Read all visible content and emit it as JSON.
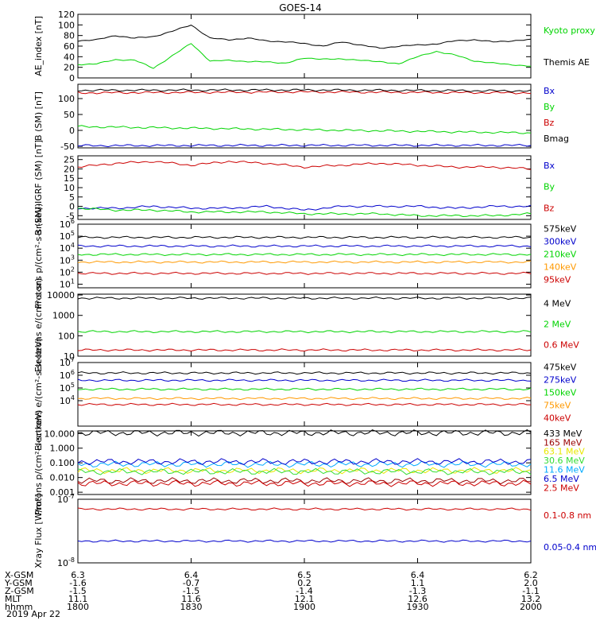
{
  "title": "GOES-14",
  "date": "2019 Apr 22",
  "colors": {
    "black": "#000000",
    "green": "#00d400",
    "red": "#cc0000",
    "blue": "#0000cc",
    "orange": "#ff9900",
    "cyan": "#00aaff",
    "yellow": "#e8e800",
    "darkred": "#990000",
    "purple": "#9900cc",
    "lightgreen": "#33dd33"
  },
  "chart_data": [
    {
      "type": "line",
      "ylabel": "AE_index [nT]",
      "ylim": [
        0,
        120
      ],
      "ticks": [
        {
          "v": 0,
          "t": "0"
        },
        {
          "v": 20,
          "t": "20"
        },
        {
          "v": 40,
          "t": "40"
        },
        {
          "v": 60,
          "t": "60"
        },
        {
          "v": 80,
          "t": "80"
        },
        {
          "v": 100,
          "t": "100"
        },
        {
          "v": 120,
          "t": "120"
        }
      ],
      "series": [
        {
          "name": "Kyoto proxy AE",
          "color": "#00d400",
          "x": [
            1800,
            1805,
            1810,
            1815,
            1820,
            1825,
            1830,
            1835,
            1840,
            1845,
            1850,
            1855,
            1900,
            1905,
            1910,
            1915,
            1920,
            1925,
            1930,
            1935,
            1940,
            1945,
            1950,
            1955,
            2000
          ],
          "y": [
            25,
            27,
            34,
            34,
            18,
            42,
            65,
            32,
            33,
            31,
            30,
            28,
            37,
            36,
            35,
            34,
            30,
            27,
            40,
            50,
            43,
            32,
            28,
            25,
            22
          ]
        },
        {
          "name": "Themis AE",
          "color": "#000000",
          "x": [
            1800,
            1805,
            1810,
            1815,
            1820,
            1825,
            1830,
            1835,
            1840,
            1845,
            1850,
            1855,
            1900,
            1905,
            1910,
            1915,
            1920,
            1925,
            1930,
            1935,
            1940,
            1945,
            1950,
            1955,
            2000
          ],
          "y": [
            70,
            72,
            80,
            75,
            78,
            88,
            100,
            75,
            72,
            75,
            70,
            68,
            65,
            60,
            68,
            62,
            56,
            60,
            62,
            64,
            70,
            72,
            68,
            70,
            72
          ]
        }
      ]
    },
    {
      "type": "line",
      "ylabel": "B (SM) [nT]",
      "ylim": [
        -55,
        145
      ],
      "ticks": [
        {
          "v": -50,
          "t": "-50"
        },
        {
          "v": 0,
          "t": "0"
        },
        {
          "v": 50,
          "t": "50"
        },
        {
          "v": 100,
          "t": "100"
        }
      ],
      "series": [
        {
          "name": "Bx",
          "color": "#0000cc",
          "x": [
            1800,
            1900,
            2000
          ],
          "y": [
            -48,
            -47,
            -47
          ]
        },
        {
          "name": "By",
          "color": "#00d400",
          "x": [
            1800,
            1900,
            2000
          ],
          "y": [
            12,
            2,
            -8
          ]
        },
        {
          "name": "Bz",
          "color": "#cc0000",
          "x": [
            1800,
            1900,
            2000
          ],
          "y": [
            118,
            121,
            118
          ]
        },
        {
          "name": "Bmag",
          "color": "#000000",
          "x": [
            1800,
            1900,
            2000
          ],
          "y": [
            126,
            127,
            124
          ]
        }
      ]
    },
    {
      "type": "line",
      "ylabel": "B (SM)-IGRF (SM) [nT]",
      "ylim": [
        -7,
        27
      ],
      "ticks": [
        {
          "v": -5,
          "t": "-5"
        },
        {
          "v": 0,
          "t": "0"
        },
        {
          "v": 5,
          "t": "5"
        },
        {
          "v": 10,
          "t": "10"
        },
        {
          "v": 15,
          "t": "15"
        },
        {
          "v": 20,
          "t": "20"
        },
        {
          "v": 25,
          "t": "25"
        }
      ],
      "series": [
        {
          "name": "Bx",
          "color": "#0000cc",
          "x": [
            1800,
            1810,
            1820,
            1830,
            1840,
            1850,
            1900,
            1910,
            1920,
            1930,
            1940,
            1950,
            2000
          ],
          "y": [
            -1,
            -1,
            0,
            -1,
            -1,
            0,
            -2,
            0,
            0,
            0,
            -1,
            0,
            0
          ]
        },
        {
          "name": "By",
          "color": "#00d400",
          "x": [
            1800,
            1810,
            1820,
            1830,
            1840,
            1850,
            1900,
            1910,
            1920,
            1930,
            1940,
            1950,
            2000
          ],
          "y": [
            -1,
            -2,
            -2,
            -3,
            -3,
            -3,
            -4,
            -4,
            -4,
            -5,
            -5,
            -5,
            -4
          ]
        },
        {
          "name": "Bz",
          "color": "#cc0000",
          "x": [
            1800,
            1810,
            1820,
            1830,
            1840,
            1850,
            1900,
            1910,
            1920,
            1930,
            1940,
            1950,
            2000
          ],
          "y": [
            21,
            23,
            24,
            22,
            24,
            23,
            21,
            22,
            23,
            22,
            21,
            21,
            20
          ]
        }
      ]
    },
    {
      "type": "line",
      "ylabel": "Protons p/(cm²-s-sr-keV)",
      "log": true,
      "ylim": [
        5,
        1000000
      ],
      "ticks": [
        {
          "v": 10,
          "t": "10^1"
        },
        {
          "v": 100,
          "t": "10^2"
        },
        {
          "v": 1000,
          "t": "10^3"
        },
        {
          "v": 10000,
          "t": "10^4"
        },
        {
          "v": 100000,
          "t": "10^5"
        },
        {
          "v": 1000000,
          "t": "10^6"
        }
      ],
      "series": [
        {
          "name": "575keV",
          "color": "#000000",
          "x": [
            1800,
            1900,
            2000
          ],
          "y": [
            80000,
            80000,
            80000
          ]
        },
        {
          "name": "300keV",
          "color": "#0000cc",
          "x": [
            1800,
            1900,
            2000
          ],
          "y": [
            15000,
            15000,
            15000
          ]
        },
        {
          "name": "210keV",
          "color": "#00d400",
          "x": [
            1800,
            1900,
            2000
          ],
          "y": [
            3000,
            3000,
            3000
          ]
        },
        {
          "name": "140keV",
          "color": "#ff9900",
          "x": [
            1800,
            1900,
            2000
          ],
          "y": [
            700,
            700,
            700
          ]
        },
        {
          "name": "95keV",
          "color": "#cc0000",
          "x": [
            1800,
            1900,
            2000
          ],
          "y": [
            80,
            80,
            80
          ]
        }
      ]
    },
    {
      "type": "line",
      "ylabel": "Electrons e/(cm²-s-sr)",
      "log": true,
      "ylim": [
        10,
        11000
      ],
      "ticks": [
        {
          "v": 10,
          "t": "10"
        },
        {
          "v": 100,
          "t": "100"
        },
        {
          "v": 1000,
          "t": "1000"
        },
        {
          "v": 10000,
          "t": "10000"
        }
      ],
      "series": [
        {
          "name": "4 MeV",
          "color": "#000000",
          "x": [
            1800,
            1900,
            2000
          ],
          "y": [
            7000,
            7000,
            7000
          ]
        },
        {
          "name": "2 MeV",
          "color": "#00d400",
          "x": [
            1800,
            1900,
            2000
          ],
          "y": [
            160,
            160,
            160
          ]
        },
        {
          "name": "0.6 MeV",
          "color": "#cc0000",
          "x": [
            1800,
            1900,
            2000
          ],
          "y": [
            20,
            20,
            20
          ]
        }
      ]
    },
    {
      "type": "line",
      "ylabel": "Electrons e/(cm²-s-sr-keV)",
      "log": true,
      "ylim": [
        100,
        10000000
      ],
      "ticks": [
        {
          "v": 10000,
          "t": "10^4"
        },
        {
          "v": 100000,
          "t": "10^5"
        },
        {
          "v": 1000000,
          "t": "10^6"
        },
        {
          "v": 10000000,
          "t": "10^7"
        }
      ],
      "series": [
        {
          "name": "475keV",
          "color": "#000000",
          "x": [
            1800,
            1900,
            2000
          ],
          "y": [
            1500000,
            1500000,
            1500000
          ]
        },
        {
          "name": "275keV",
          "color": "#0000cc",
          "x": [
            1800,
            1900,
            2000
          ],
          "y": [
            400000,
            400000,
            400000
          ]
        },
        {
          "name": "150keV",
          "color": "#00d400",
          "x": [
            1800,
            1900,
            2000
          ],
          "y": [
            80000,
            80000,
            80000
          ]
        },
        {
          "name": "75keV",
          "color": "#ff9900",
          "x": [
            1800,
            1900,
            2000
          ],
          "y": [
            15000,
            15000,
            15000
          ]
        },
        {
          "name": "40keV",
          "color": "#cc0000",
          "x": [
            1800,
            1900,
            2000
          ],
          "y": [
            5000,
            5000,
            5000
          ]
        }
      ]
    },
    {
      "type": "line",
      "ylabel": "Protons p/(cm²-s-sr-keV)",
      "log": true,
      "ylim": [
        0.0007,
        15
      ],
      "ticks": [
        {
          "v": 0.001,
          "t": "0.001"
        },
        {
          "v": 0.01,
          "t": "0.010"
        },
        {
          "v": 0.1,
          "t": "0.100"
        },
        {
          "v": 1,
          "t": "1.000"
        },
        {
          "v": 10,
          "t": "10.000"
        }
      ],
      "series": [
        {
          "name": "433 MeV",
          "color": "#000000",
          "x": [
            1800,
            1900,
            2000
          ],
          "y": [
            11,
            11,
            11
          ]
        },
        {
          "name": "165 MeV",
          "color": "#990000",
          "x": [
            1800,
            1900,
            2000
          ],
          "y": [
            0.006,
            0.006,
            0.006
          ]
        },
        {
          "name": "63.1 MeV",
          "color": "#e8e800",
          "x": [
            1800,
            1900,
            2000
          ],
          "y": [
            0.03,
            0.03,
            0.03
          ]
        },
        {
          "name": "30.6 MeV",
          "color": "#33dd33",
          "x": [
            1800,
            1900,
            2000
          ],
          "y": [
            0.025,
            0.025,
            0.025
          ]
        },
        {
          "name": "11.6 MeV",
          "color": "#00aaff",
          "x": [
            1800,
            1900,
            2000
          ],
          "y": [
            0.08,
            0.08,
            0.08
          ]
        },
        {
          "name": "6.5 MeV",
          "color": "#0000cc",
          "x": [
            1800,
            1900,
            2000
          ],
          "y": [
            0.12,
            0.12,
            0.12
          ]
        },
        {
          "name": "2.5 MeV",
          "color": "#cc0000",
          "x": [
            1800,
            1900,
            2000
          ],
          "y": [
            0.004,
            0.004,
            0.004
          ]
        }
      ]
    },
    {
      "type": "line",
      "ylabel": "Xray Flux [W/m²]",
      "log": true,
      "ylim": [
        1e-08,
        1e-07
      ],
      "ticks": [
        {
          "v": 1e-08,
          "t": "10^-8"
        },
        {
          "v": 1e-07,
          "t": "10^-7"
        }
      ],
      "series": [
        {
          "name": "0.1-0.8 nm",
          "color": "#cc0000",
          "x": [
            1800,
            1900,
            2000
          ],
          "y": [
            7e-08,
            7e-08,
            7e-08
          ]
        },
        {
          "name": "0.05-0.4 nm",
          "color": "#0000cc",
          "x": [
            1800,
            1900,
            2000
          ],
          "y": [
            2.2e-08,
            2.2e-08,
            2.2e-08
          ]
        }
      ]
    }
  ],
  "time_axis": {
    "row_labels": [
      "X-GSM",
      "Y-GSM",
      "Z-GSM",
      "MLT",
      "hhmm"
    ],
    "columns": [
      {
        "x": 1800,
        "values": [
          "6.3",
          "-1.6",
          "-1.5",
          "11.1",
          "1800"
        ]
      },
      {
        "x": 1830,
        "values": [
          "6.4",
          "-0.7",
          "-1.5",
          "11.6",
          "1830"
        ]
      },
      {
        "x": 1900,
        "values": [
          "6.5",
          "0.2",
          "-1.4",
          "12.1",
          "1900"
        ]
      },
      {
        "x": 1930,
        "values": [
          "6.4",
          "1.1",
          "-1.3",
          "12.6",
          "1930"
        ]
      },
      {
        "x": 2000,
        "values": [
          "6.2",
          "2.0",
          "-1.1",
          "13.2",
          "2000"
        ]
      }
    ]
  }
}
